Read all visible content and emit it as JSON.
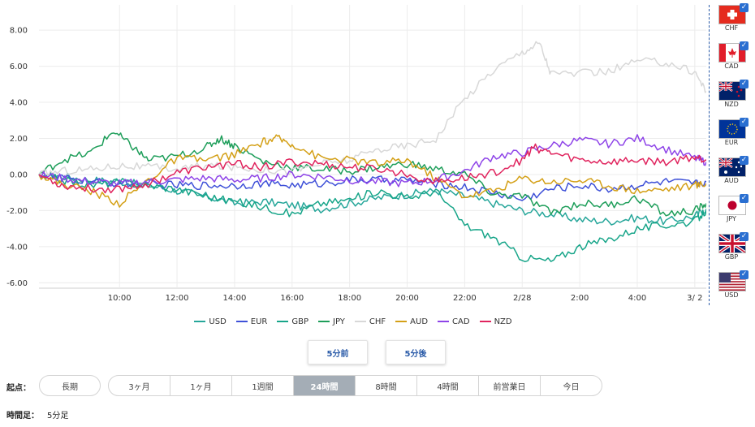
{
  "chart_data": {
    "type": "line",
    "y_ticks": [
      "8.00",
      "6.00",
      "4.00",
      "2.00",
      "0.00",
      "-2.00",
      "-4.00",
      "-6.00"
    ],
    "ylim": [
      -6.3,
      9.4
    ],
    "x_tick_labels": [
      "10:00",
      "12:00",
      "14:00",
      "16:00",
      "18:00",
      "20:00",
      "22:00",
      "2/28",
      "2:00",
      "4:00",
      "3/ 2"
    ],
    "x_tick_positions": [
      6,
      8,
      10,
      12,
      14,
      16,
      18,
      20,
      22,
      24,
      26
    ],
    "xlim": [
      3.2,
      26.4
    ],
    "series": [
      {
        "name": "USD",
        "color": "#26a69a",
        "points": [
          [
            3.2,
            0
          ],
          [
            4,
            -0.1
          ],
          [
            5,
            -0.3
          ],
          [
            6,
            -0.4
          ],
          [
            7,
            -0.6
          ],
          [
            8,
            -0.9
          ],
          [
            9,
            -1.2
          ],
          [
            10,
            -1.6
          ],
          [
            11,
            -1.5
          ],
          [
            12,
            -1.7
          ],
          [
            13,
            -1.9
          ],
          [
            14,
            -1.6
          ],
          [
            15,
            -1.3
          ],
          [
            16,
            -1.1
          ],
          [
            17,
            -0.9
          ],
          [
            18,
            -1.2
          ],
          [
            19,
            -1.6
          ],
          [
            20,
            -2.0
          ],
          [
            21,
            -2.2
          ],
          [
            22,
            -2.5
          ],
          [
            23,
            -2.6
          ],
          [
            24,
            -2.4
          ],
          [
            25,
            -2.6
          ],
          [
            26,
            -2.3
          ],
          [
            26.4,
            -1.9
          ]
        ]
      },
      {
        "name": "EUR",
        "color": "#3f51d8",
        "points": [
          [
            3.2,
            0
          ],
          [
            4,
            -0.2
          ],
          [
            5,
            -0.4
          ],
          [
            6,
            -0.5
          ],
          [
            7,
            -0.5
          ],
          [
            8,
            -0.6
          ],
          [
            9,
            -0.6
          ],
          [
            10,
            -0.6
          ],
          [
            11,
            -0.5
          ],
          [
            12,
            -0.6
          ],
          [
            13,
            -0.5
          ],
          [
            14,
            -0.3
          ],
          [
            15,
            -0.3
          ],
          [
            16,
            -0.3
          ],
          [
            17,
            -0.5
          ],
          [
            18,
            -0.7
          ],
          [
            19,
            -1.0
          ],
          [
            20,
            -1.4
          ],
          [
            21,
            -0.8
          ],
          [
            22,
            -0.6
          ],
          [
            23,
            -0.8
          ],
          [
            24,
            -0.6
          ],
          [
            25,
            -0.4
          ],
          [
            26,
            -0.5
          ],
          [
            26.4,
            -0.4
          ]
        ]
      },
      {
        "name": "GBP",
        "color": "#17a589",
        "points": [
          [
            3.2,
            0
          ],
          [
            4,
            -0.3
          ],
          [
            5,
            -0.6
          ],
          [
            6,
            -0.4
          ],
          [
            7,
            -0.6
          ],
          [
            8,
            -0.8
          ],
          [
            9,
            -1.2
          ],
          [
            10,
            -1.5
          ],
          [
            11,
            -1.8
          ],
          [
            12,
            -2.2
          ],
          [
            13,
            -1.6
          ],
          [
            14,
            -1.4
          ],
          [
            15,
            -0.9
          ],
          [
            16,
            -1.3
          ],
          [
            17,
            -0.9
          ],
          [
            18,
            -2.8
          ],
          [
            19,
            -3.5
          ],
          [
            20,
            -4.6
          ],
          [
            21,
            -4.8
          ],
          [
            22,
            -4.0
          ],
          [
            23,
            -3.6
          ],
          [
            24,
            -3.0
          ],
          [
            25,
            -2.8
          ],
          [
            26,
            -2.6
          ],
          [
            26.4,
            -2.0
          ]
        ]
      },
      {
        "name": "JPY",
        "color": "#1e9e5a",
        "points": [
          [
            3.2,
            0
          ],
          [
            4,
            0.8
          ],
          [
            5,
            1.2
          ],
          [
            5.8,
            2.4
          ],
          [
            6.4,
            1.6
          ],
          [
            7,
            0.8
          ],
          [
            8,
            1.0
          ],
          [
            9,
            1.5
          ],
          [
            9.5,
            2.0
          ],
          [
            10,
            1.6
          ],
          [
            11,
            0.7
          ],
          [
            12,
            0.4
          ],
          [
            13,
            0.3
          ],
          [
            14,
            0.2
          ],
          [
            15,
            0.4
          ],
          [
            16,
            0.6
          ],
          [
            17,
            0.3
          ],
          [
            18,
            0.0
          ],
          [
            19,
            -1.1
          ],
          [
            20,
            -1.2
          ],
          [
            21,
            -2.1
          ],
          [
            22,
            -1.6
          ],
          [
            23,
            -1.7
          ],
          [
            24,
            -1.3
          ],
          [
            25,
            -2.2
          ],
          [
            26,
            -2.0
          ],
          [
            26.4,
            -1.6
          ]
        ]
      },
      {
        "name": "CHF",
        "color": "#d8d8d8",
        "points": [
          [
            3.2,
            0
          ],
          [
            4,
            0.2
          ],
          [
            5,
            0.3
          ],
          [
            6,
            0.5
          ],
          [
            7,
            0.4
          ],
          [
            8,
            0.3
          ],
          [
            9,
            0.5
          ],
          [
            10,
            0.4
          ],
          [
            11,
            0.3
          ],
          [
            12,
            0.2
          ],
          [
            13,
            0.6
          ],
          [
            14,
            0.8
          ],
          [
            15,
            1.4
          ],
          [
            16,
            1.6
          ],
          [
            17,
            2.0
          ],
          [
            18,
            4.2
          ],
          [
            19,
            5.8
          ],
          [
            20,
            6.8
          ],
          [
            20.6,
            7.3
          ],
          [
            21,
            5.6
          ],
          [
            22,
            5.6
          ],
          [
            23,
            5.7
          ],
          [
            24,
            6.3
          ],
          [
            25,
            6.2
          ],
          [
            26,
            5.7
          ],
          [
            26.4,
            4.6
          ]
        ]
      },
      {
        "name": "AUD",
        "color": "#d4a017",
        "points": [
          [
            3.2,
            0
          ],
          [
            4,
            -0.5
          ],
          [
            5,
            -0.9
          ],
          [
            6,
            -1.6
          ],
          [
            7,
            -0.3
          ],
          [
            8,
            0.9
          ],
          [
            9,
            0.8
          ],
          [
            10,
            1.1
          ],
          [
            11,
            1.8
          ],
          [
            11.5,
            2.0
          ],
          [
            12,
            1.7
          ],
          [
            13,
            0.9
          ],
          [
            14,
            0.8
          ],
          [
            15,
            0.6
          ],
          [
            16,
            0.8
          ],
          [
            17,
            -0.2
          ],
          [
            18,
            -1.2
          ],
          [
            19,
            -0.9
          ],
          [
            20,
            -0.2
          ],
          [
            21,
            -0.4
          ],
          [
            22,
            -0.3
          ],
          [
            23,
            -0.6
          ],
          [
            24,
            -0.9
          ],
          [
            25,
            -0.8
          ],
          [
            26,
            -0.6
          ],
          [
            26.4,
            -0.5
          ]
        ]
      },
      {
        "name": "CAD",
        "color": "#8e44e8",
        "points": [
          [
            3.2,
            0
          ],
          [
            4,
            -0.2
          ],
          [
            5,
            -0.4
          ],
          [
            6,
            -0.5
          ],
          [
            7,
            -0.4
          ],
          [
            8,
            -0.3
          ],
          [
            9,
            -0.2
          ],
          [
            10,
            -0.3
          ],
          [
            11,
            -0.2
          ],
          [
            12,
            0.0
          ],
          [
            13,
            -0.1
          ],
          [
            14,
            -0.3
          ],
          [
            15,
            -0.4
          ],
          [
            16,
            -0.5
          ],
          [
            17,
            -0.3
          ],
          [
            18,
            0.2
          ],
          [
            19,
            1.0
          ],
          [
            20,
            1.2
          ],
          [
            21,
            1.6
          ],
          [
            22,
            1.9
          ],
          [
            23,
            1.7
          ],
          [
            24,
            2.0
          ],
          [
            25,
            1.4
          ],
          [
            26,
            0.9
          ],
          [
            26.4,
            0.7
          ]
        ]
      },
      {
        "name": "NZD",
        "color": "#e0245e",
        "points": [
          [
            3.2,
            0
          ],
          [
            4,
            -0.6
          ],
          [
            5,
            -0.8
          ],
          [
            6,
            -0.8
          ],
          [
            7,
            -0.5
          ],
          [
            8,
            0.1
          ],
          [
            9,
            0.4
          ],
          [
            10,
            0.6
          ],
          [
            11,
            0.4
          ],
          [
            12,
            0.7
          ],
          [
            13,
            0.6
          ],
          [
            14,
            0.4
          ],
          [
            15,
            0.3
          ],
          [
            16,
            0.0
          ],
          [
            17,
            -0.4
          ],
          [
            18,
            -0.2
          ],
          [
            19,
            0.1
          ],
          [
            20,
            0.8
          ],
          [
            20.4,
            1.5
          ],
          [
            21,
            1.2
          ],
          [
            22,
            0.8
          ],
          [
            23,
            0.7
          ],
          [
            24,
            0.8
          ],
          [
            25,
            0.7
          ],
          [
            26,
            1.0
          ],
          [
            26.4,
            0.8
          ]
        ]
      }
    ]
  },
  "buttons": {
    "prev": "5分前",
    "next": "5分後"
  },
  "range": {
    "label": "起点：",
    "long": "長期",
    "options": [
      "3ヶ月",
      "1ヶ月",
      "1週間",
      "24時間",
      "8時間",
      "4時間",
      "前営業日",
      "今日"
    ],
    "active": "24時間"
  },
  "interval": {
    "label": "時間足：",
    "value": "5分足"
  },
  "flags": [
    {
      "code": "CHF",
      "check": "✓"
    },
    {
      "code": "CAD",
      "check": "✓"
    },
    {
      "code": "NZD",
      "check": "✓"
    },
    {
      "code": "EUR",
      "check": "✓"
    },
    {
      "code": "AUD",
      "check": "✓"
    },
    {
      "code": "JPY",
      "check": "✓"
    },
    {
      "code": "GBP",
      "check": "✓"
    },
    {
      "code": "USD",
      "check": "✓"
    }
  ]
}
